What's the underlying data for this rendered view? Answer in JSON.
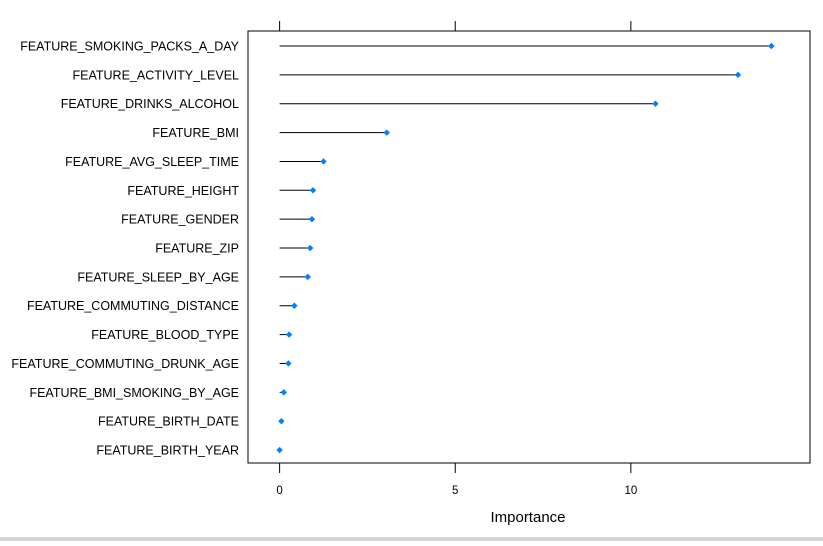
{
  "chart_data": {
    "type": "dot",
    "xlabel": "Importance",
    "ylabel": "",
    "xlim": [
      -0.9,
      15.1
    ],
    "x_ticks": [
      0,
      5,
      10
    ],
    "x_tick_labels": [
      "0",
      "5",
      "10"
    ],
    "grid": false,
    "legend": "none",
    "point_color": "#0080ff",
    "stem_color": "#000000",
    "categories": [
      "FEATURE_SMOKING_PACKS_A_DAY",
      "FEATURE_ACTIVITY_LEVEL",
      "FEATURE_DRINKS_ALCOHOL",
      "FEATURE_BMI",
      "FEATURE_AVG_SLEEP_TIME",
      "FEATURE_HEIGHT",
      "FEATURE_GENDER",
      "FEATURE_ZIP",
      "FEATURE_SLEEP_BY_AGE",
      "FEATURE_COMMUTING_DISTANCE",
      "FEATURE_BLOOD_TYPE",
      "FEATURE_COMMUTING_DRUNK_AGE",
      "FEATURE_BMI_SMOKING_BY_AGE",
      "FEATURE_BIRTH_DATE",
      "FEATURE_BIRTH_YEAR"
    ],
    "values": [
      14.0,
      13.05,
      10.7,
      3.05,
      1.25,
      0.95,
      0.92,
      0.87,
      0.8,
      0.42,
      0.27,
      0.25,
      0.12,
      0.05,
      0.0
    ]
  }
}
